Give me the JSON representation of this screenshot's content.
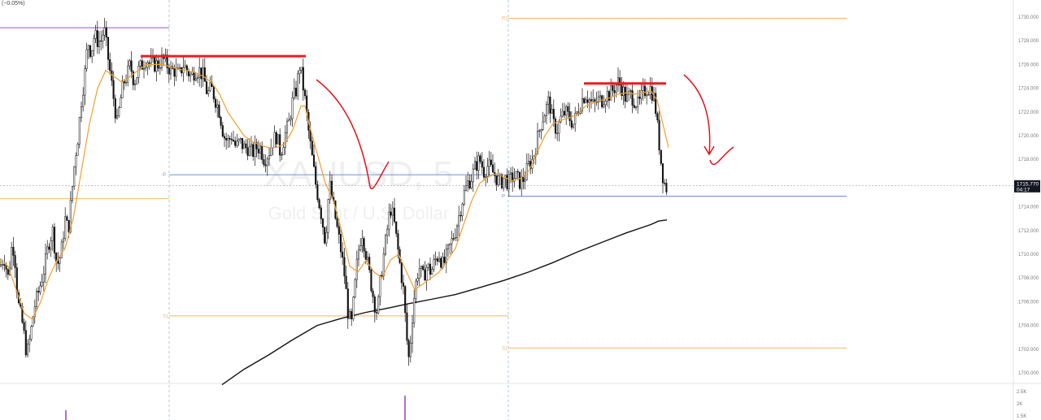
{
  "header": {
    "change_text": "(−0.05%)"
  },
  "watermark": {
    "symbol": "XAUUSD, 5",
    "description": "Gold Spot / U.S. Dollar"
  },
  "price_label": {
    "price": "1715.770",
    "countdown": "04:17",
    "value": 1715.77
  },
  "colors": {
    "candle": "#111111",
    "ema": "#f0a030",
    "ma_long": "#111111",
    "resistance": "#ee1c1c",
    "pivot": "#6f8fd8",
    "r_level": "#f2b56b",
    "s_level": "#f2b56b",
    "purple_level": "#9c4cbf",
    "orange_level": "#f2b56b",
    "arrow": "#e0141e",
    "volume": "#9c4cbf",
    "session_line": "#9fb8d8"
  },
  "chart_data": {
    "type": "candlestick",
    "symbol": "XAUUSD",
    "timeframe": "5",
    "ylim": [
      1699,
      1732
    ],
    "yticks": [
      1700,
      1702,
      1704,
      1706,
      1708,
      1710,
      1712,
      1714,
      1716,
      1718,
      1720,
      1722,
      1724,
      1726,
      1728,
      1730
    ],
    "ytick_labels": [
      "1700.000",
      "1702.000",
      "1704.000",
      "1706.000",
      "1708.000",
      "1710.000",
      "1712.000",
      "1714.000",
      "1716.000",
      "1718.000",
      "1720.000",
      "1722.000",
      "1724.000",
      "1726.000",
      "1728.000",
      "1730.000"
    ],
    "volume_labels": [
      "2.5K",
      "2K",
      "1.5K"
    ],
    "price_path": [
      [
        0,
        1709
      ],
      [
        5,
        1709.8
      ],
      [
        10,
        1708
      ],
      [
        15,
        1711
      ],
      [
        18,
        1710
      ],
      [
        22,
        1706
      ],
      [
        28,
        1704
      ],
      [
        33,
        1701.5
      ],
      [
        37,
        1703
      ],
      [
        42,
        1705.5
      ],
      [
        48,
        1707
      ],
      [
        55,
        1709
      ],
      [
        60,
        1711
      ],
      [
        65,
        1712
      ],
      [
        70,
        1709
      ],
      [
        75,
        1710
      ],
      [
        80,
        1713
      ],
      [
        84,
        1712
      ],
      [
        88,
        1715
      ],
      [
        92,
        1718
      ],
      [
        96,
        1720
      ],
      [
        100,
        1723
      ],
      [
        104,
        1725
      ],
      [
        108,
        1728
      ],
      [
        112,
        1727
      ],
      [
        116,
        1728.5
      ],
      [
        120,
        1728
      ],
      [
        124,
        1728
      ],
      [
        128,
        1729
      ],
      [
        132,
        1727
      ],
      [
        136,
        1725
      ],
      [
        140,
        1723
      ],
      [
        144,
        1721
      ],
      [
        148,
        1723
      ],
      [
        152,
        1724.5
      ],
      [
        156,
        1725
      ],
      [
        160,
        1726
      ],
      [
        165,
        1724.5
      ],
      [
        170,
        1725.5
      ],
      [
        175,
        1726
      ],
      [
        180,
        1726.5
      ],
      [
        185,
        1726
      ],
      [
        190,
        1726
      ],
      [
        195,
        1726
      ],
      [
        200,
        1726.5
      ],
      [
        205,
        1726
      ],
      [
        210,
        1725.5
      ],
      [
        215,
        1725.5
      ],
      [
        220,
        1725
      ],
      [
        225,
        1726
      ],
      [
        230,
        1725.5
      ],
      [
        235,
        1725
      ],
      [
        240,
        1725.5
      ],
      [
        245,
        1725.5
      ],
      [
        250,
        1725
      ],
      [
        255,
        1723.5
      ],
      [
        260,
        1724
      ],
      [
        265,
        1723
      ],
      [
        270,
        1722
      ],
      [
        275,
        1720
      ],
      [
        280,
        1719.5
      ],
      [
        285,
        1720
      ],
      [
        290,
        1719
      ],
      [
        295,
        1719.5
      ],
      [
        300,
        1719
      ],
      [
        305,
        1719
      ],
      [
        310,
        1718.5
      ],
      [
        315,
        1719
      ],
      [
        320,
        1719
      ],
      [
        325,
        1718
      ],
      [
        330,
        1718.5
      ],
      [
        335,
        1719.5
      ],
      [
        340,
        1720
      ],
      [
        345,
        1718.5
      ],
      [
        350,
        1720
      ],
      [
        355,
        1721
      ],
      [
        360,
        1723
      ],
      [
        365,
        1724
      ],
      [
        368,
        1726
      ],
      [
        371,
        1725
      ],
      [
        375,
        1723
      ],
      [
        380,
        1720
      ],
      [
        384,
        1718
      ],
      [
        388,
        1716
      ],
      [
        392,
        1714.5
      ],
      [
        396,
        1713
      ],
      [
        400,
        1711
      ],
      [
        405,
        1716
      ],
      [
        410,
        1714
      ],
      [
        415,
        1712
      ],
      [
        420,
        1710
      ],
      [
        424,
        1708
      ],
      [
        428,
        1705
      ],
      [
        432,
        1704
      ],
      [
        436,
        1707
      ],
      [
        440,
        1710
      ],
      [
        445,
        1712
      ],
      [
        450,
        1710
      ],
      [
        455,
        1708
      ],
      [
        460,
        1706
      ],
      [
        464,
        1705
      ],
      [
        468,
        1708
      ],
      [
        472,
        1710
      ],
      [
        476,
        1712
      ],
      [
        480,
        1714
      ],
      [
        484,
        1713
      ],
      [
        488,
        1711
      ],
      [
        492,
        1709
      ],
      [
        496,
        1707
      ],
      [
        500,
        1703
      ],
      [
        503,
        1701
      ],
      [
        506,
        1704
      ],
      [
        510,
        1707
      ],
      [
        515,
        1709
      ],
      [
        520,
        1708
      ],
      [
        525,
        1709
      ],
      [
        530,
        1708.5
      ],
      [
        535,
        1709.5
      ],
      [
        540,
        1710
      ],
      [
        545,
        1709
      ],
      [
        550,
        1710
      ],
      [
        555,
        1711
      ],
      [
        560,
        1712
      ],
      [
        565,
        1713.5
      ],
      [
        570,
        1715
      ],
      [
        575,
        1716
      ],
      [
        580,
        1716.5
      ],
      [
        585,
        1717.5
      ],
      [
        590,
        1718
      ],
      [
        595,
        1717
      ],
      [
        600,
        1717.5
      ],
      [
        605,
        1717
      ],
      [
        610,
        1716.5
      ],
      [
        615,
        1716
      ],
      [
        620,
        1716.5
      ],
      [
        625,
        1716
      ],
      [
        630,
        1716.5
      ],
      [
        635,
        1716.5
      ],
      [
        640,
        1716
      ],
      [
        645,
        1716.5
      ],
      [
        650,
        1717.5
      ],
      [
        655,
        1718
      ],
      [
        660,
        1719.5
      ],
      [
        665,
        1721
      ],
      [
        670,
        1722
      ],
      [
        675,
        1723
      ],
      [
        680,
        1721
      ],
      [
        685,
        1720.5
      ],
      [
        690,
        1721.5
      ],
      [
        695,
        1722
      ],
      [
        700,
        1721.5
      ],
      [
        705,
        1721
      ],
      [
        710,
        1722
      ],
      [
        715,
        1723
      ],
      [
        720,
        1723.5
      ],
      [
        725,
        1723
      ],
      [
        730,
        1722.5
      ],
      [
        735,
        1723
      ],
      [
        740,
        1723
      ],
      [
        745,
        1723.5
      ],
      [
        750,
        1723.5
      ],
      [
        755,
        1724
      ],
      [
        760,
        1724.5
      ],
      [
        765,
        1724
      ],
      [
        770,
        1723
      ],
      [
        775,
        1723.5
      ],
      [
        780,
        1723
      ],
      [
        785,
        1722.5
      ],
      [
        790,
        1723.5
      ],
      [
        795,
        1724
      ],
      [
        800,
        1724
      ],
      [
        805,
        1723
      ],
      [
        808,
        1721
      ],
      [
        811,
        1719
      ],
      [
        814,
        1717
      ],
      [
        817,
        1716
      ],
      [
        820,
        1715.5
      ],
      [
        822,
        1715.8
      ]
    ],
    "ema_path": [
      [
        0,
        1709.5
      ],
      [
        10,
        1709
      ],
      [
        20,
        1707
      ],
      [
        30,
        1705
      ],
      [
        40,
        1704.5
      ],
      [
        50,
        1706
      ],
      [
        60,
        1708
      ],
      [
        70,
        1709.5
      ],
      [
        80,
        1710.5
      ],
      [
        90,
        1713
      ],
      [
        100,
        1717
      ],
      [
        110,
        1721
      ],
      [
        120,
        1724
      ],
      [
        130,
        1725.5
      ],
      [
        140,
        1725
      ],
      [
        150,
        1724.5
      ],
      [
        160,
        1725
      ],
      [
        170,
        1725.5
      ],
      [
        180,
        1726
      ],
      [
        190,
        1726
      ],
      [
        200,
        1726
      ],
      [
        210,
        1725.8
      ],
      [
        220,
        1725.6
      ],
      [
        230,
        1725.5
      ],
      [
        240,
        1725.3
      ],
      [
        250,
        1725
      ],
      [
        260,
        1724.5
      ],
      [
        270,
        1723.5
      ],
      [
        280,
        1722
      ],
      [
        290,
        1721
      ],
      [
        300,
        1720
      ],
      [
        310,
        1719.5
      ],
      [
        320,
        1719.2
      ],
      [
        330,
        1719
      ],
      [
        340,
        1719
      ],
      [
        350,
        1719.3
      ],
      [
        360,
        1720.5
      ],
      [
        370,
        1722.5
      ],
      [
        375,
        1722.5
      ],
      [
        380,
        1721
      ],
      [
        390,
        1718.5
      ],
      [
        400,
        1716
      ],
      [
        410,
        1714.5
      ],
      [
        420,
        1712
      ],
      [
        430,
        1709
      ],
      [
        440,
        1708.5
      ],
      [
        450,
        1709.5
      ],
      [
        460,
        1708.5
      ],
      [
        470,
        1708
      ],
      [
        480,
        1709.5
      ],
      [
        490,
        1710
      ],
      [
        500,
        1708.5
      ],
      [
        510,
        1707
      ],
      [
        520,
        1707.5
      ],
      [
        530,
        1708
      ],
      [
        540,
        1708.5
      ],
      [
        550,
        1709.5
      ],
      [
        560,
        1710.5
      ],
      [
        570,
        1712.5
      ],
      [
        580,
        1714.5
      ],
      [
        590,
        1716
      ],
      [
        600,
        1716.5
      ],
      [
        610,
        1716.8
      ],
      [
        620,
        1716.5
      ],
      [
        630,
        1716.2
      ],
      [
        640,
        1716.4
      ],
      [
        650,
        1717
      ],
      [
        660,
        1718.5
      ],
      [
        670,
        1720
      ],
      [
        680,
        1721
      ],
      [
        690,
        1721.3
      ],
      [
        700,
        1721.5
      ],
      [
        710,
        1721.8
      ],
      [
        720,
        1722.5
      ],
      [
        730,
        1722.8
      ],
      [
        740,
        1723
      ],
      [
        750,
        1723.2
      ],
      [
        760,
        1723.5
      ],
      [
        770,
        1723.6
      ],
      [
        780,
        1723.5
      ],
      [
        790,
        1723.6
      ],
      [
        800,
        1723.8
      ],
      [
        808,
        1723
      ],
      [
        815,
        1721
      ],
      [
        822,
        1719
      ]
    ],
    "ma_long_path": [
      [
        273,
        1699
      ],
      [
        300,
        1700.3
      ],
      [
        330,
        1701.5
      ],
      [
        360,
        1702.8
      ],
      [
        390,
        1704
      ],
      [
        420,
        1704.6
      ],
      [
        450,
        1705.1
      ],
      [
        480,
        1705.5
      ],
      [
        500,
        1705.8
      ],
      [
        530,
        1706.2
      ],
      [
        560,
        1706.6
      ],
      [
        590,
        1707.2
      ],
      [
        620,
        1707.8
      ],
      [
        650,
        1708.5
      ],
      [
        680,
        1709.3
      ],
      [
        710,
        1710.2
      ],
      [
        740,
        1711
      ],
      [
        770,
        1711.8
      ],
      [
        800,
        1712.5
      ],
      [
        810,
        1712.8
      ],
      [
        820,
        1712.9
      ]
    ],
    "series": [
      {
        "name": "price",
        "points_ref": "price_path"
      },
      {
        "name": "ema",
        "points_ref": "ema_path"
      },
      {
        "name": "long ma",
        "points_ref": "ma_long_path"
      }
    ],
    "levels": [
      {
        "label": "",
        "value": 1729.1,
        "color": "purple_level",
        "x_range": [
          0,
          208
        ]
      },
      {
        "label": "P",
        "value": 1716.7,
        "color": "pivot",
        "x_range": [
          208,
          625
        ]
      },
      {
        "label": "",
        "value": 1714.7,
        "color": "orange_level",
        "x_range": [
          0,
          208
        ]
      },
      {
        "label": "S1",
        "value": 1704.8,
        "color": "s_level",
        "x_range": [
          208,
          625
        ]
      },
      {
        "label": "R1",
        "value": 1729.9,
        "color": "r_level",
        "x_range": [
          625,
          1041
        ]
      },
      {
        "label": "P",
        "value": 1714.9,
        "color": "pivot",
        "x_range": [
          625,
          1041
        ]
      },
      {
        "label": "S1",
        "value": 1702.1,
        "color": "s_level",
        "x_range": [
          625,
          1041
        ]
      }
    ],
    "resistance_lines": [
      {
        "value": 1726.7,
        "x_range": [
          173,
          376
        ]
      },
      {
        "value": 1724.4,
        "x_range": [
          718,
          819
        ]
      }
    ],
    "session_breaks_x": [
      208,
      625
    ],
    "current_price": 1715.77
  }
}
